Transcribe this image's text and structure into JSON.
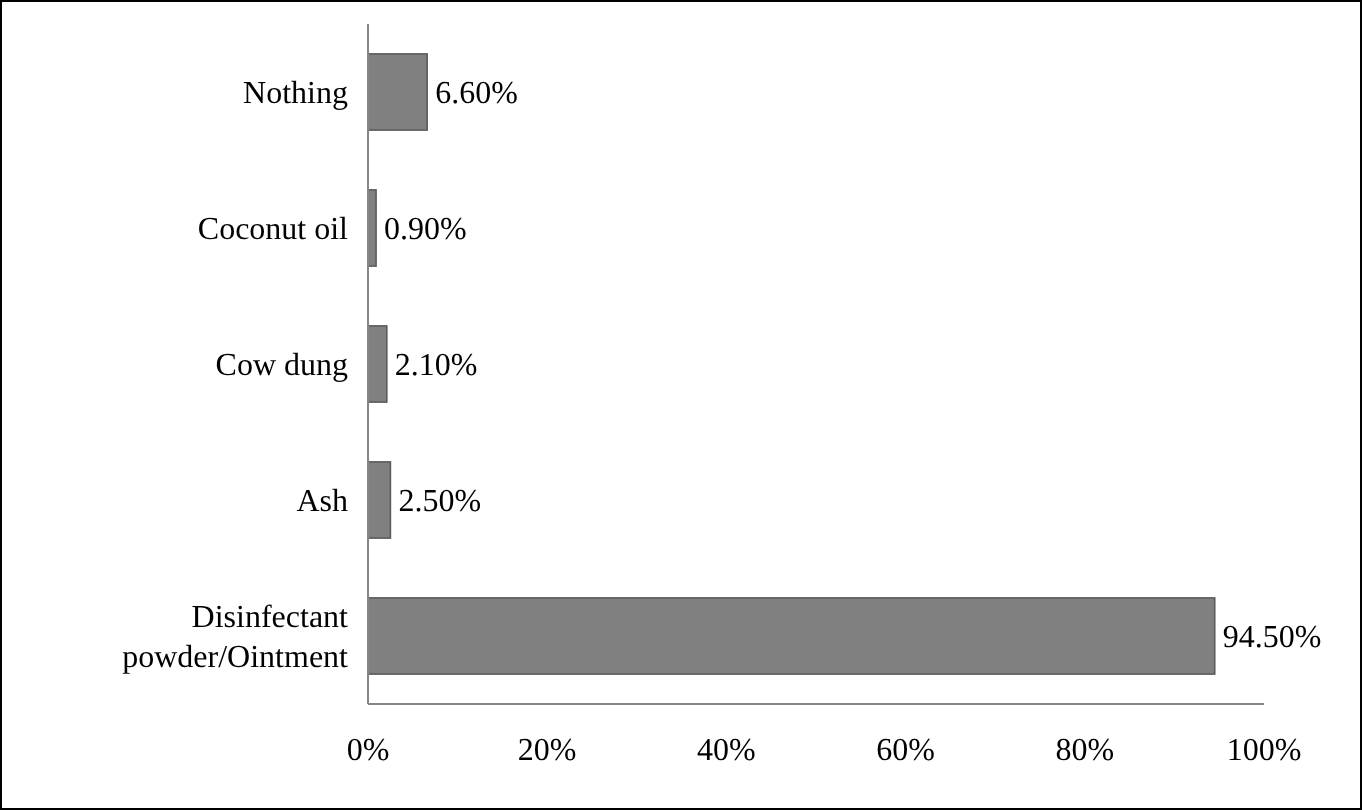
{
  "chart_data": {
    "type": "bar",
    "orientation": "horizontal",
    "categories": [
      "Nothing",
      "Coconut oil",
      "Cow dung",
      "Ash",
      "Disinfectant powder/Ointment"
    ],
    "values": [
      6.6,
      0.9,
      2.1,
      2.5,
      94.5
    ],
    "color": "#808080",
    "value_labels": [
      "6.60%",
      "0.90%",
      "2.10%",
      "2.50%",
      "94.50%"
    ],
    "xlim": [
      0,
      100
    ],
    "xticks": [
      {
        "value": 0,
        "label": "0%"
      },
      {
        "value": 20,
        "label": "20%"
      },
      {
        "value": 40,
        "label": "40%"
      },
      {
        "value": 60,
        "label": "60%"
      },
      {
        "value": 80,
        "label": "80%"
      },
      {
        "value": 100,
        "label": "100%"
      }
    ],
    "tick_labels": true
  }
}
